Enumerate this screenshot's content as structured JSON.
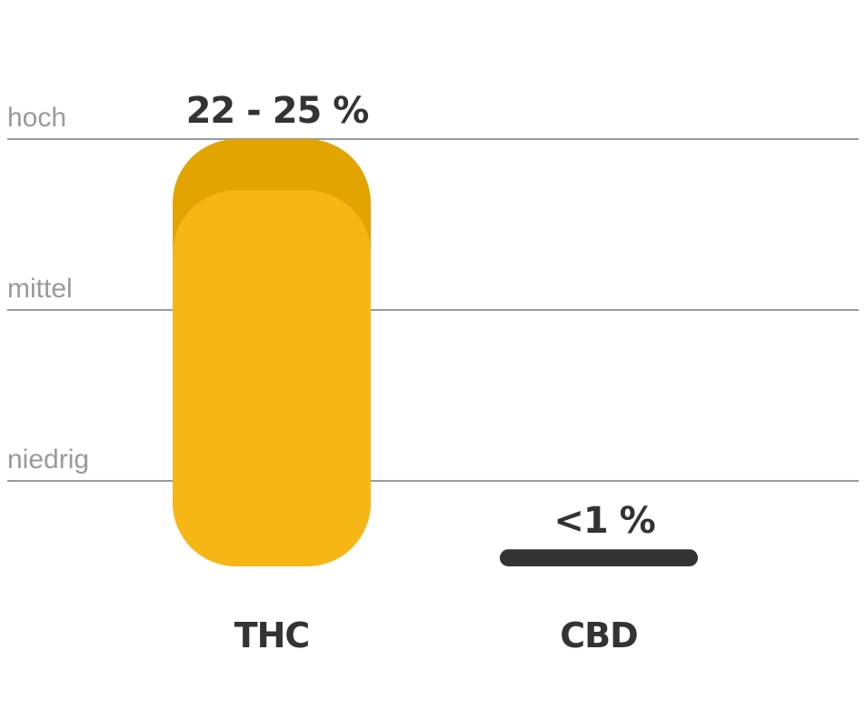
{
  "chart_data": {
    "type": "bar",
    "categories": [
      "THC",
      "CBD"
    ],
    "values": [
      25,
      1
    ],
    "range_start": [
      22,
      null
    ],
    "value_labels": [
      "22 - 25 %",
      "<1 %"
    ],
    "colors": [
      "#f6b616",
      "#333333"
    ],
    "range_color": "#e1a400",
    "ylim": [
      0,
      25
    ],
    "yticks": [
      {
        "value": 5,
        "label": "niedrig"
      },
      {
        "value": 15,
        "label": "mittel"
      },
      {
        "value": 25,
        "label": "hoch"
      }
    ],
    "grid": true
  }
}
